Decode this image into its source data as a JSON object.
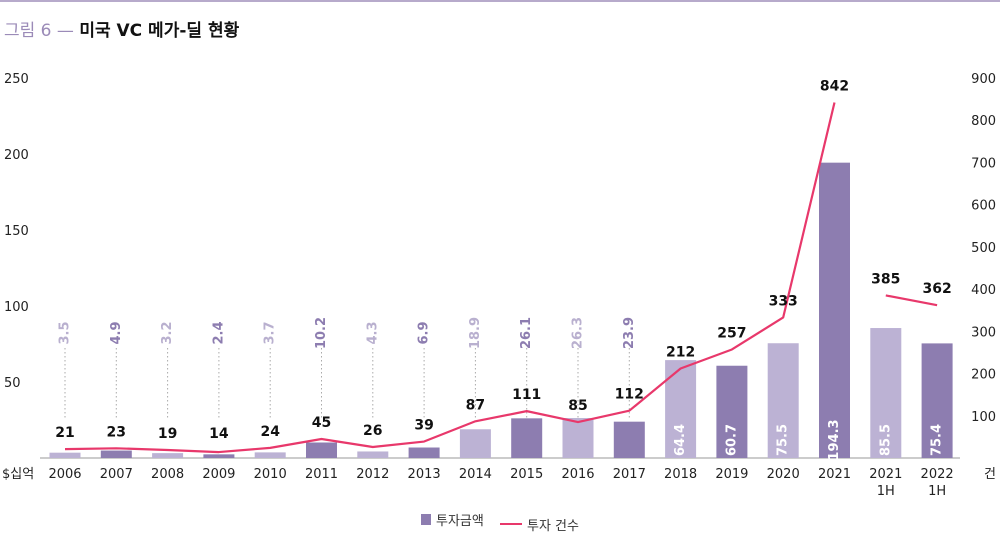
{
  "figure": {
    "prefix": "그림 6 —",
    "title": "미국 VC 메가-딜 현황"
  },
  "colors": {
    "bar_dark": "#8d7db0",
    "bar_light": "#bcb2d4",
    "line": "#e8386b",
    "label_dark": "#8d7db0",
    "label_light": "#b9b0cf",
    "title_prefix": "#9b8bb8"
  },
  "chart_data": {
    "type": "bar",
    "title": "미국 VC 메가-딜 현황",
    "categories": [
      "2006",
      "2007",
      "2008",
      "2009",
      "2010",
      "2011",
      "2012",
      "2013",
      "2014",
      "2015",
      "2016",
      "2017",
      "2018",
      "2019",
      "2020",
      "2021",
      "2021\n1H",
      "2022\n1H"
    ],
    "y_left_unit": "$십억",
    "y_right_unit": "건",
    "ylim_left": [
      0,
      250
    ],
    "ylim_right": [
      0,
      900
    ],
    "y_left_ticks": [
      "250",
      "200",
      "150",
      "100",
      "50"
    ],
    "y_right_ticks": [
      "900",
      "800",
      "700",
      "600",
      "500",
      "400",
      "300",
      "200",
      "100"
    ],
    "series": [
      {
        "name": "투자금액",
        "kind": "bar",
        "axis": "left",
        "values": [
          3.5,
          4.9,
          3.2,
          2.4,
          3.7,
          10.2,
          4.3,
          6.9,
          18.9,
          26.1,
          26.3,
          23.9,
          64.4,
          60.7,
          75.5,
          194.3,
          85.5,
          75.4
        ],
        "labels": [
          "3.5",
          "4.9",
          "3.2",
          "2.4",
          "3.7",
          "10.2",
          "4.3",
          "6.9",
          "18.9",
          "26.1",
          "26.3",
          "23.9",
          "64.4",
          "60.7",
          "75.5",
          "194.3",
          "85.5",
          "75.4"
        ],
        "shade": [
          "light",
          "dark",
          "light",
          "dark",
          "light",
          "dark",
          "light",
          "dark",
          "light",
          "dark",
          "light",
          "dark",
          "light",
          "dark",
          "light",
          "dark",
          "light",
          "dark"
        ]
      },
      {
        "name": "투자 건수",
        "kind": "line",
        "axis": "right",
        "values": [
          21,
          23,
          19,
          14,
          24,
          45,
          26,
          39,
          87,
          111,
          85,
          112,
          212,
          257,
          333,
          842,
          385,
          362
        ],
        "labels": [
          "21",
          "23",
          "19",
          "14",
          "24",
          "45",
          "26",
          "39",
          "87",
          "111",
          "85",
          "112",
          "212",
          "257",
          "333",
          "842",
          "385",
          "362"
        ],
        "segments": [
          [
            0,
            15
          ],
          [
            16,
            17
          ]
        ]
      }
    ],
    "grid": false,
    "legend_position": "bottom-center"
  },
  "legend": {
    "bar_label": "투자금액",
    "line_label": "투자 건수"
  }
}
